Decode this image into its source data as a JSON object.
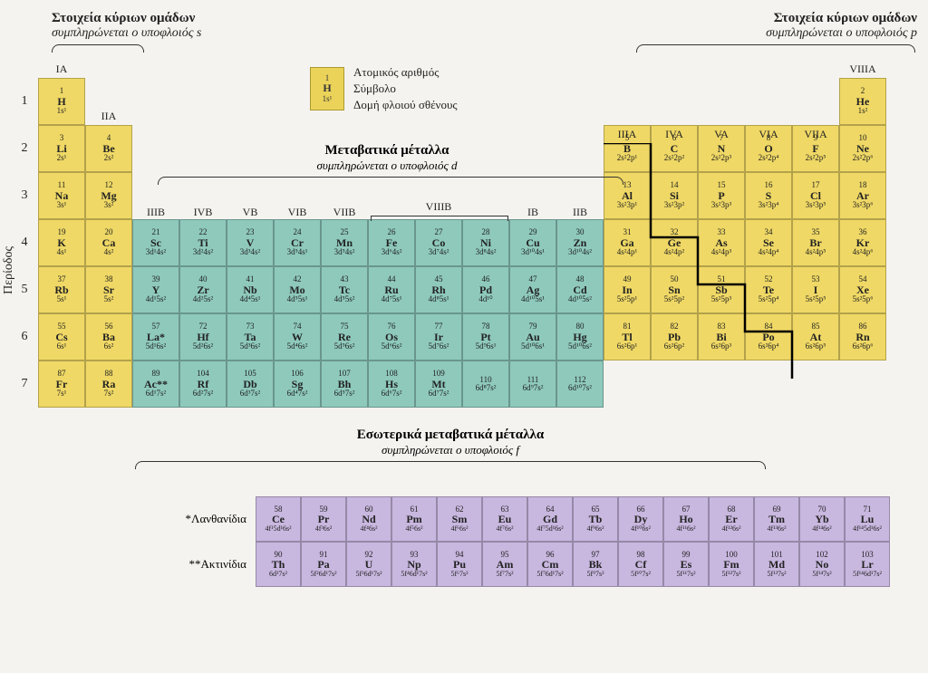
{
  "colors": {
    "background": "#f5f3ef",
    "s_p_block": "#efd865",
    "d_block": "#8ec9bc",
    "f_block": "#c8b7df",
    "border": "#888",
    "text": "#222"
  },
  "header": {
    "left_title": "Στοιχεία κύριων ομάδων",
    "left_sub": "συμπληρώνεται ο υποφλοιός s",
    "right_title": "Στοιχεία κύριων ομάδων",
    "right_sub": "συμπληρώνεται ο υποφλοιός p"
  },
  "legend": {
    "atomic_number": "Ατομικός αριθμός",
    "symbol": "Σύμβολο",
    "valence": "Δομή φλοιού σθένους",
    "example": {
      "num": "1",
      "sym": "H",
      "conf": "1s¹"
    }
  },
  "period_axis": "Περίοδος",
  "mid": {
    "transition_title": "Μεταβατικά μέταλλα",
    "transition_sub": "συμπληρώνεται ο υποφλοιός d",
    "inner_title": "Εσωτερικά μεταβατικά μέταλλα",
    "inner_sub": "συμπληρώνεται ο υποφλοιός f"
  },
  "group_labels": {
    "IA": "IA",
    "IIA": "IIA",
    "IIIB": "IIIB",
    "IVB": "IVB",
    "VB": "VB",
    "VIB": "VIB",
    "VIIB": "VIIB",
    "VIIIB": "VIIIB",
    "IB": "IB",
    "IIB": "IIB",
    "IIIA": "IIIA",
    "IVA": "IVA",
    "VA": "VA",
    "VIA": "VIA",
    "VIIA": "VIIA",
    "VIIIA": "VIIIA"
  },
  "periods": [
    "1",
    "2",
    "3",
    "4",
    "5",
    "6",
    "7"
  ],
  "f_labels": {
    "lan": "*Λανθανίδια",
    "act": "**Ακτινίδια"
  },
  "elements": {
    "H": {
      "z": "1",
      "conf": "1s¹"
    },
    "He": {
      "z": "2",
      "conf": "1s²"
    },
    "Li": {
      "z": "3",
      "conf": "2s¹"
    },
    "Be": {
      "z": "4",
      "conf": "2s²"
    },
    "B": {
      "z": "5",
      "conf": "2s²2p¹"
    },
    "C": {
      "z": "6",
      "conf": "2s²2p²"
    },
    "N": {
      "z": "7",
      "conf": "2s²2p³"
    },
    "O": {
      "z": "8",
      "conf": "2s²2p⁴"
    },
    "F": {
      "z": "9",
      "conf": "2s²2p⁵"
    },
    "Ne": {
      "z": "10",
      "conf": "2s²2p⁶"
    },
    "Na": {
      "z": "11",
      "conf": "3s¹"
    },
    "Mg": {
      "z": "12",
      "conf": "3s²"
    },
    "Al": {
      "z": "13",
      "conf": "3s²3p¹"
    },
    "Si": {
      "z": "14",
      "conf": "3s²3p²"
    },
    "P": {
      "z": "15",
      "conf": "3s²3p³"
    },
    "S": {
      "z": "16",
      "conf": "3s²3p⁴"
    },
    "Cl": {
      "z": "17",
      "conf": "3s²3p⁵"
    },
    "Ar": {
      "z": "18",
      "conf": "3s²3p⁶"
    },
    "K": {
      "z": "19",
      "conf": "4s¹"
    },
    "Ca": {
      "z": "20",
      "conf": "4s²"
    },
    "Sc": {
      "z": "21",
      "conf": "3d¹4s²"
    },
    "Ti": {
      "z": "22",
      "conf": "3d²4s²"
    },
    "V": {
      "z": "23",
      "conf": "3d³4s²"
    },
    "Cr": {
      "z": "24",
      "conf": "3d⁵4s¹"
    },
    "Mn": {
      "z": "25",
      "conf": "3d⁵4s²"
    },
    "Fe": {
      "z": "26",
      "conf": "3d⁶4s²"
    },
    "Co": {
      "z": "27",
      "conf": "3d⁷4s²"
    },
    "Ni": {
      "z": "28",
      "conf": "3d⁸4s²"
    },
    "Cu": {
      "z": "29",
      "conf": "3d¹⁰4s¹"
    },
    "Zn": {
      "z": "30",
      "conf": "3d¹⁰4s²"
    },
    "Ga": {
      "z": "31",
      "conf": "4s²4p¹"
    },
    "Ge": {
      "z": "32",
      "conf": "4s²4p²"
    },
    "As": {
      "z": "33",
      "conf": "4s²4p³"
    },
    "Se": {
      "z": "34",
      "conf": "4s²4p⁴"
    },
    "Br": {
      "z": "35",
      "conf": "4s²4p⁵"
    },
    "Kr": {
      "z": "36",
      "conf": "4s²4p⁶"
    },
    "Rb": {
      "z": "37",
      "conf": "5s¹"
    },
    "Sr": {
      "z": "38",
      "conf": "5s²"
    },
    "Y": {
      "z": "39",
      "conf": "4d¹5s²"
    },
    "Zr": {
      "z": "40",
      "conf": "4d²5s²"
    },
    "Nb": {
      "z": "41",
      "conf": "4d⁴5s¹"
    },
    "Mo": {
      "z": "42",
      "conf": "4d⁵5s¹"
    },
    "Tc": {
      "z": "43",
      "conf": "4d⁵5s²"
    },
    "Ru": {
      "z": "44",
      "conf": "4d⁷5s¹"
    },
    "Rh": {
      "z": "45",
      "conf": "4d⁸5s¹"
    },
    "Pd": {
      "z": "46",
      "conf": "4d¹⁰"
    },
    "Ag": {
      "z": "47",
      "conf": "4d¹⁰5s¹"
    },
    "Cd": {
      "z": "48",
      "conf": "4d¹⁰5s²"
    },
    "In": {
      "z": "49",
      "conf": "5s²5p¹"
    },
    "Sn": {
      "z": "50",
      "conf": "5s²5p²"
    },
    "Sb": {
      "z": "51",
      "conf": "5s²5p³"
    },
    "Te": {
      "z": "52",
      "conf": "5s²5p⁴"
    },
    "I": {
      "z": "53",
      "conf": "5s²5p⁵"
    },
    "Xe": {
      "z": "54",
      "conf": "5s²5p⁶"
    },
    "Cs": {
      "z": "55",
      "conf": "6s¹"
    },
    "Ba": {
      "z": "56",
      "conf": "6s²"
    },
    "La*": {
      "z": "57",
      "conf": "5d¹6s²"
    },
    "Hf": {
      "z": "72",
      "conf": "5d²6s²"
    },
    "Ta": {
      "z": "73",
      "conf": "5d³6s²"
    },
    "W": {
      "z": "74",
      "conf": "5d⁴6s²"
    },
    "Re": {
      "z": "75",
      "conf": "5d⁵6s²"
    },
    "Os": {
      "z": "76",
      "conf": "5d⁶6s²"
    },
    "Ir": {
      "z": "77",
      "conf": "5d⁷6s²"
    },
    "Pt": {
      "z": "78",
      "conf": "5d⁹6s¹"
    },
    "Au": {
      "z": "79",
      "conf": "5d¹⁰6s¹"
    },
    "Hg": {
      "z": "80",
      "conf": "5d¹⁰6s²"
    },
    "Tl": {
      "z": "81",
      "conf": "6s²6p¹"
    },
    "Pb": {
      "z": "82",
      "conf": "6s²6p²"
    },
    "Bi": {
      "z": "83",
      "conf": "6s²6p³"
    },
    "Po": {
      "z": "84",
      "conf": "6s²6p⁴"
    },
    "At": {
      "z": "85",
      "conf": "6s²6p⁵"
    },
    "Rn": {
      "z": "86",
      "conf": "6s²6p⁶"
    },
    "Fr": {
      "z": "87",
      "conf": "7s¹"
    },
    "Ra": {
      "z": "88",
      "conf": "7s²"
    },
    "Ac**": {
      "z": "89",
      "conf": "6d¹7s²"
    },
    "Rf": {
      "z": "104",
      "conf": "6d²7s²"
    },
    "Db": {
      "z": "105",
      "conf": "6d³7s²"
    },
    "Sg": {
      "z": "106",
      "conf": "6d⁴7s²"
    },
    "Bh": {
      "z": "107",
      "conf": "6d⁵7s²"
    },
    "Hs": {
      "z": "108",
      "conf": "6d⁶7s²"
    },
    "Mt": {
      "z": "109",
      "conf": "6d⁷7s²"
    },
    "110": {
      "z": "110",
      "conf": "6d⁸7s²",
      "nosym": true
    },
    "111": {
      "z": "111",
      "conf": "6d⁹7s²",
      "nosym": true
    },
    "112": {
      "z": "112",
      "conf": "6d¹⁰7s²",
      "nosym": true
    },
    "Ce": {
      "z": "58",
      "conf": "4f¹5d¹6s²"
    },
    "Pr": {
      "z": "59",
      "conf": "4f³6s²"
    },
    "Nd": {
      "z": "60",
      "conf": "4f⁴6s²"
    },
    "Pm": {
      "z": "61",
      "conf": "4f⁵6s²"
    },
    "Sm": {
      "z": "62",
      "conf": "4f⁶6s²"
    },
    "Eu": {
      "z": "63",
      "conf": "4f⁷6s²"
    },
    "Gd": {
      "z": "64",
      "conf": "4f⁷5d¹6s²"
    },
    "Tb": {
      "z": "65",
      "conf": "4f⁹6s²"
    },
    "Dy": {
      "z": "66",
      "conf": "4f¹⁰6s²"
    },
    "Ho": {
      "z": "67",
      "conf": "4f¹¹6s²"
    },
    "Er": {
      "z": "68",
      "conf": "4f¹²6s²"
    },
    "Tm": {
      "z": "69",
      "conf": "4f¹³6s²"
    },
    "Yb": {
      "z": "70",
      "conf": "4f¹⁴6s²"
    },
    "Lu": {
      "z": "71",
      "conf": "4f¹⁴5d¹6s²"
    },
    "Th": {
      "z": "90",
      "conf": "6d²7s²"
    },
    "Pa": {
      "z": "91",
      "conf": "5f²6d¹7s²"
    },
    "U": {
      "z": "92",
      "conf": "5f³6d¹7s²"
    },
    "Np": {
      "z": "93",
      "conf": "5f⁴6d¹7s²"
    },
    "Pu": {
      "z": "94",
      "conf": "5f⁶7s²"
    },
    "Am": {
      "z": "95",
      "conf": "5f⁷7s²"
    },
    "Cm": {
      "z": "96",
      "conf": "5f⁷6d¹7s²"
    },
    "Bk": {
      "z": "97",
      "conf": "5f⁹7s²"
    },
    "Cf": {
      "z": "98",
      "conf": "5f¹⁰7s²"
    },
    "Es": {
      "z": "99",
      "conf": "5f¹¹7s²"
    },
    "Fm": {
      "z": "100",
      "conf": "5f¹²7s²"
    },
    "Md": {
      "z": "101",
      "conf": "5f¹³7s²"
    },
    "No": {
      "z": "102",
      "conf": "5f¹⁴7s²"
    },
    "Lr": {
      "z": "103",
      "conf": "5f¹⁴6d¹7s²"
    }
  },
  "layout": {
    "main": [
      [
        [
          "H",
          "y"
        ],
        null,
        null,
        null,
        null,
        null,
        null,
        null,
        null,
        null,
        null,
        null,
        null,
        null,
        null,
        null,
        null,
        [
          "He",
          "y"
        ]
      ],
      [
        [
          "Li",
          "y"
        ],
        [
          "Be",
          "y"
        ],
        null,
        null,
        null,
        null,
        null,
        null,
        null,
        null,
        null,
        null,
        [
          "B",
          "y"
        ],
        [
          "C",
          "y"
        ],
        [
          "N",
          "y"
        ],
        [
          "O",
          "y"
        ],
        [
          "F",
          "y"
        ],
        [
          "Ne",
          "y"
        ]
      ],
      [
        [
          "Na",
          "y"
        ],
        [
          "Mg",
          "y"
        ],
        null,
        null,
        null,
        null,
        null,
        null,
        null,
        null,
        null,
        null,
        [
          "Al",
          "y"
        ],
        [
          "Si",
          "y"
        ],
        [
          "P",
          "y"
        ],
        [
          "S",
          "y"
        ],
        [
          "Cl",
          "y"
        ],
        [
          "Ar",
          "y"
        ]
      ],
      [
        [
          "K",
          "y"
        ],
        [
          "Ca",
          "y"
        ],
        [
          "Sc",
          "t"
        ],
        [
          "Ti",
          "t"
        ],
        [
          "V",
          "t"
        ],
        [
          "Cr",
          "t"
        ],
        [
          "Mn",
          "t"
        ],
        [
          "Fe",
          "t"
        ],
        [
          "Co",
          "t"
        ],
        [
          "Ni",
          "t"
        ],
        [
          "Cu",
          "t"
        ],
        [
          "Zn",
          "t"
        ],
        [
          "Ga",
          "y"
        ],
        [
          "Ge",
          "y"
        ],
        [
          "As",
          "y"
        ],
        [
          "Se",
          "y"
        ],
        [
          "Br",
          "y"
        ],
        [
          "Kr",
          "y"
        ]
      ],
      [
        [
          "Rb",
          "y"
        ],
        [
          "Sr",
          "y"
        ],
        [
          "Y",
          "t"
        ],
        [
          "Zr",
          "t"
        ],
        [
          "Nb",
          "t"
        ],
        [
          "Mo",
          "t"
        ],
        [
          "Tc",
          "t"
        ],
        [
          "Ru",
          "t"
        ],
        [
          "Rh",
          "t"
        ],
        [
          "Pd",
          "t"
        ],
        [
          "Ag",
          "t"
        ],
        [
          "Cd",
          "t"
        ],
        [
          "In",
          "y"
        ],
        [
          "Sn",
          "y"
        ],
        [
          "Sb",
          "y"
        ],
        [
          "Te",
          "y"
        ],
        [
          "I",
          "y"
        ],
        [
          "Xe",
          "y"
        ]
      ],
      [
        [
          "Cs",
          "y"
        ],
        [
          "Ba",
          "y"
        ],
        [
          "La*",
          "t"
        ],
        [
          "Hf",
          "t"
        ],
        [
          "Ta",
          "t"
        ],
        [
          "W",
          "t"
        ],
        [
          "Re",
          "t"
        ],
        [
          "Os",
          "t"
        ],
        [
          "Ir",
          "t"
        ],
        [
          "Pt",
          "t"
        ],
        [
          "Au",
          "t"
        ],
        [
          "Hg",
          "t"
        ],
        [
          "Tl",
          "y"
        ],
        [
          "Pb",
          "y"
        ],
        [
          "Bi",
          "y"
        ],
        [
          "Po",
          "y"
        ],
        [
          "At",
          "y"
        ],
        [
          "Rn",
          "y"
        ]
      ],
      [
        [
          "Fr",
          "y"
        ],
        [
          "Ra",
          "y"
        ],
        [
          "Ac**",
          "t"
        ],
        [
          "Rf",
          "t"
        ],
        [
          "Db",
          "t"
        ],
        [
          "Sg",
          "t"
        ],
        [
          "Bh",
          "t"
        ],
        [
          "Hs",
          "t"
        ],
        [
          "Mt",
          "t"
        ],
        [
          "110",
          "t"
        ],
        [
          "111",
          "t"
        ],
        [
          "112",
          "t"
        ],
        null,
        null,
        null,
        null,
        null,
        null
      ]
    ],
    "lan": [
      "Ce",
      "Pr",
      "Nd",
      "Pm",
      "Sm",
      "Eu",
      "Gd",
      "Tb",
      "Dy",
      "Ho",
      "Er",
      "Tm",
      "Yb",
      "Lu"
    ],
    "act": [
      "Th",
      "Pa",
      "U",
      "Np",
      "Pu",
      "Am",
      "Cm",
      "Bk",
      "Cf",
      "Es",
      "Fm",
      "Md",
      "No",
      "Lr"
    ]
  }
}
